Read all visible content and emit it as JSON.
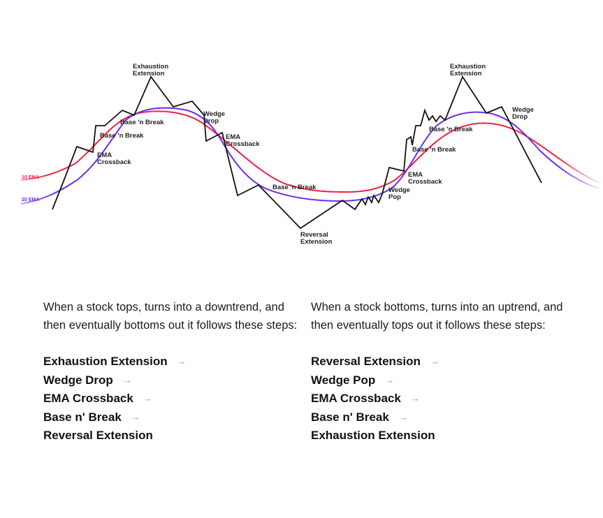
{
  "diagram": {
    "ema_labels": {
      "ema10": "10 EMA",
      "ema20": "20 EMA"
    },
    "colors": {
      "price": "#111111",
      "ema10": "#ee2247",
      "ema20": "#6a2fe8"
    },
    "annotations": {
      "exhaustion_left": [
        "Exhaustion",
        "Extension"
      ],
      "wedge_drop_left": [
        "Wedge",
        "Drop"
      ],
      "ema_crossback_left_top": [
        "EMA",
        "Crossback"
      ],
      "base_break_left_upper": [
        "Base 'n Break"
      ],
      "base_break_left_lower": [
        "Base 'n Break"
      ],
      "ema_crossback_left_bottom": [
        "EMA",
        "Crossback"
      ],
      "base_break_middle": [
        "Base 'n Break"
      ],
      "reversal_extension": [
        "Reversal",
        "Extension"
      ],
      "wedge_pop": [
        "Wedge",
        "Pop"
      ],
      "ema_crossback_right": [
        "EMA",
        "Crossback"
      ],
      "base_break_right_lower": [
        "Base 'n Break"
      ],
      "base_break_right_upper": [
        "Base 'n Break"
      ],
      "exhaustion_right": [
        "Exhaustion",
        "Extension"
      ],
      "wedge_drop_right": [
        "Wedge",
        "Drop"
      ]
    }
  },
  "left": {
    "intro": "When a stock tops, turns into a downtrend, and then eventually bottoms out it follows these steps:",
    "steps": [
      "Exhaustion Extension",
      "Wedge Drop",
      "EMA Crossback",
      "Base n' Break",
      "Reversal Extension"
    ]
  },
  "right": {
    "intro": "When a stock bottoms, turns into an uptrend, and then eventually tops out it follows these steps:",
    "steps": [
      "Reversal Extension",
      "Wedge Pop",
      "EMA Crossback",
      "Base n' Break",
      "Exhaustion Extension"
    ]
  },
  "arrow_glyph": "→"
}
